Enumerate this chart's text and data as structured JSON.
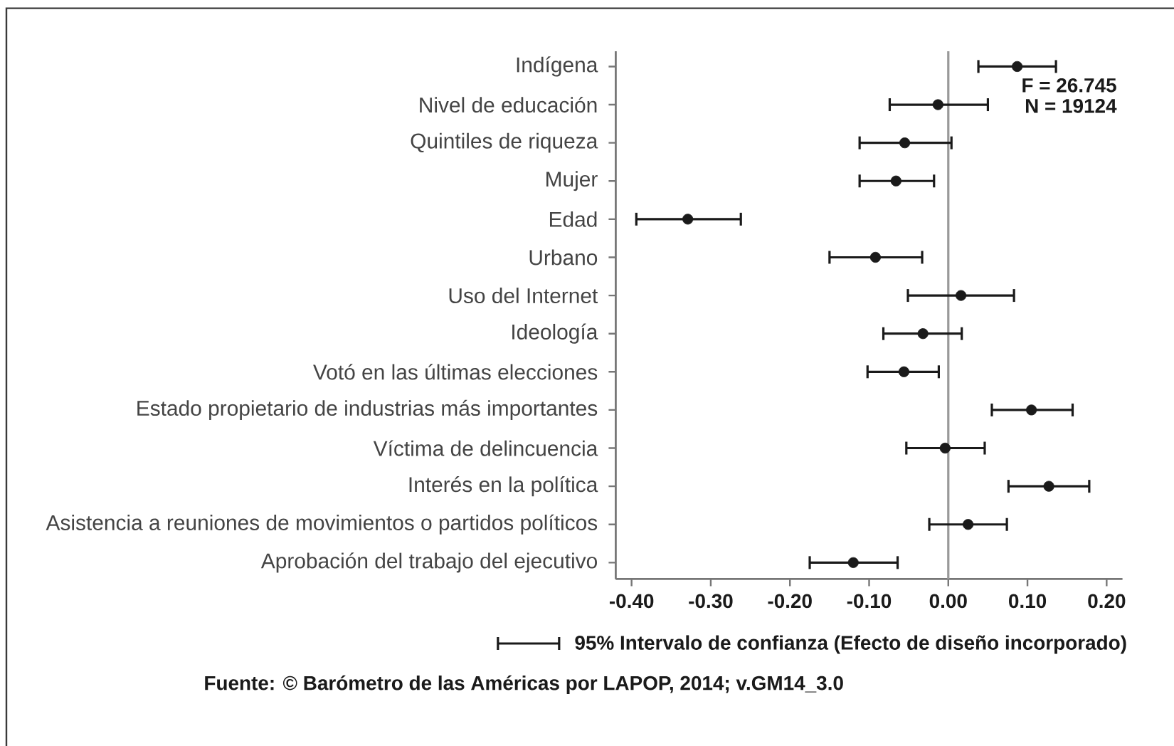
{
  "chart_data": {
    "type": "scatter",
    "orientation": "horizontal",
    "categories": [
      "Indígena",
      "Nivel de educación",
      "Quintiles de riqueza",
      "Mujer",
      "Edad",
      "Urbano",
      "Uso del Internet",
      "Ideología",
      "Votó en las últimas elecciones",
      "Estado propietario de industrias más importantes",
      "Víctima de delincuencia",
      "Interés en la política",
      "Asistencia a reuniones de movimientos o partidos políticos",
      "Aprobación del trabajo del ejecutivo"
    ],
    "series": [
      {
        "name": "95% Intervalo de confianza (Efecto de diseño incorporado)",
        "color": "#1a1a1a",
        "values": [
          0.087,
          -0.013,
          -0.055,
          -0.066,
          -0.329,
          -0.092,
          0.016,
          -0.032,
          -0.056,
          0.105,
          -0.004,
          0.127,
          0.025,
          -0.12
        ],
        "errors": [
          [
            0.038,
            0.136
          ],
          [
            -0.074,
            0.05
          ],
          [
            -0.112,
            0.004
          ],
          [
            -0.112,
            -0.018
          ],
          [
            -0.394,
            -0.262
          ],
          [
            -0.15,
            -0.033
          ],
          [
            -0.051,
            0.083
          ],
          [
            -0.082,
            0.017
          ],
          [
            -0.102,
            -0.012
          ],
          [
            0.055,
            0.157
          ],
          [
            -0.053,
            0.046
          ],
          [
            0.076,
            0.178
          ],
          [
            -0.024,
            0.074
          ],
          [
            -0.175,
            -0.064
          ]
        ]
      }
    ],
    "xlim": [
      -0.42,
      0.22
    ],
    "xticks": [
      {
        "value": -0.4,
        "label": "-0.40"
      },
      {
        "value": -0.3,
        "label": "-0.30"
      },
      {
        "value": -0.2,
        "label": "-0.20"
      },
      {
        "value": -0.1,
        "label": "-0.10"
      },
      {
        "value": 0,
        "label": "0.00"
      },
      {
        "value": 0.1,
        "label": "0.10"
      },
      {
        "value": 0.2,
        "label": "0.20"
      }
    ],
    "ref_lines": [
      {
        "axis": "x",
        "value": 0,
        "color": "#999999"
      }
    ],
    "annotations": [
      "F = 26.745",
      "N = 19124",
      "Fuente: © Barómetro de las Américas por LAPOP, 2014; v.GM14_3.0"
    ],
    "legend": "bottom",
    "marker": "circle"
  }
}
